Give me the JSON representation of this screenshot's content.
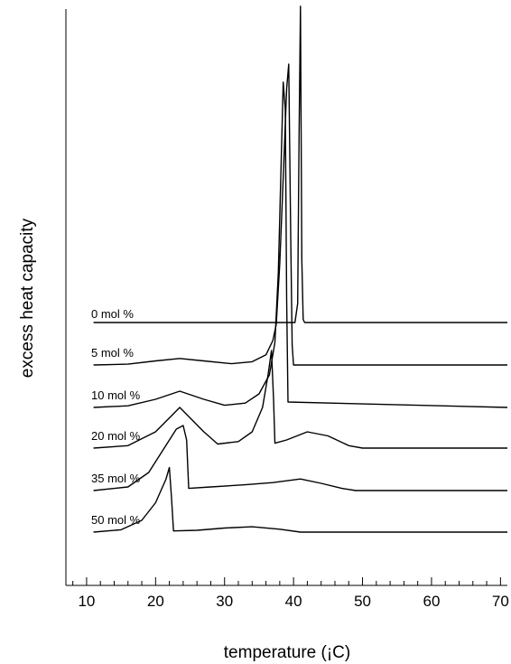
{
  "chart_data": {
    "type": "line",
    "title": "",
    "xlabel": "temperature (¡C)",
    "ylabel": "excess heat capacity",
    "xlim": [
      7,
      71
    ],
    "xticks": [
      10,
      20,
      30,
      40,
      50,
      60,
      70
    ],
    "x_minor_step": 2,
    "yticks_shown": false,
    "grid": false,
    "legend": "none",
    "series": [
      {
        "name": "0 mol %",
        "x": [
          11,
          38.0,
          40.2,
          40.6,
          40.8,
          41.0,
          41.2,
          41.4,
          41.6,
          71
        ],
        "y": [
          0,
          0,
          0,
          6,
          60,
          100,
          20,
          1,
          0,
          0
        ]
      },
      {
        "name": "5 mol %",
        "x": [
          11,
          16,
          20,
          23.5,
          27,
          31,
          34,
          36,
          37,
          37.5,
          38,
          38.6,
          39.0,
          39.3,
          39.6,
          39.8,
          40.0,
          71
        ],
        "y": [
          0,
          0.2,
          1.0,
          1.6,
          1.0,
          0.3,
          0.8,
          2.5,
          6,
          10,
          25,
          50,
          68,
          74,
          30,
          5,
          0,
          0
        ]
      },
      {
        "name": "10 mol %",
        "x": [
          11,
          16,
          20,
          23.5,
          27,
          30,
          33,
          35,
          36.5,
          37.3,
          37.8,
          38.2,
          38.5,
          38.8,
          39.0,
          39.2,
          71
        ],
        "y": [
          0,
          0.3,
          1.5,
          3.0,
          1.5,
          0.4,
          0.8,
          2.5,
          6,
          12,
          25,
          45,
          60,
          55,
          20,
          1,
          0
        ]
      },
      {
        "name": "20 mol %",
        "x": [
          11,
          16,
          20,
          23.5,
          27,
          29,
          32,
          34,
          35.5,
          36.3,
          36.8,
          37.1,
          37.3,
          39,
          42,
          45,
          48,
          50,
          71
        ],
        "y": [
          0,
          0.3,
          2.0,
          5.0,
          2.0,
          0.5,
          0.8,
          2.0,
          5,
          9,
          12,
          6,
          0.6,
          1.0,
          2.0,
          1.5,
          0.3,
          0,
          0
        ]
      },
      {
        "name": "35 mol %",
        "x": [
          11,
          16,
          19,
          21,
          23,
          24.0,
          24.5,
          24.8,
          28,
          33,
          37,
          41,
          44,
          47,
          49,
          71
        ],
        "y": [
          0,
          0.5,
          2.5,
          5.5,
          8.5,
          9.0,
          7,
          0.3,
          0.5,
          0.8,
          1.1,
          1.6,
          1.0,
          0.3,
          0,
          0
        ]
      },
      {
        "name": "50 mol %",
        "x": [
          11,
          15,
          18,
          20,
          21.5,
          22.0,
          22.3,
          22.6,
          26,
          30,
          34,
          38,
          41,
          71
        ],
        "y": [
          0,
          0.4,
          2.0,
          5.0,
          9.0,
          11.0,
          6,
          0.2,
          0.3,
          0.7,
          0.9,
          0.5,
          0,
          0
        ]
      }
    ]
  }
}
